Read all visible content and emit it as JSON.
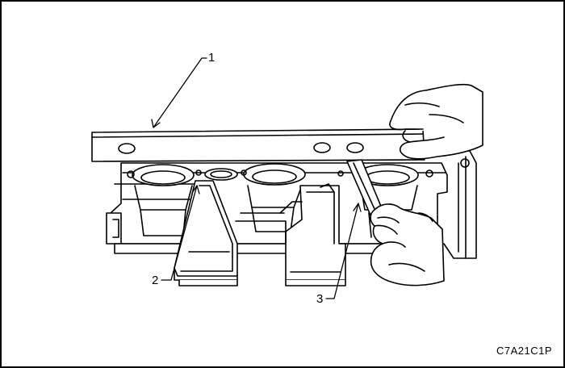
{
  "callouts": {
    "c1": "1",
    "c2": "2",
    "c3": "3"
  },
  "figure_code": "C7A21C1P",
  "colors": {
    "line": "#000000",
    "background": "#ffffff"
  }
}
